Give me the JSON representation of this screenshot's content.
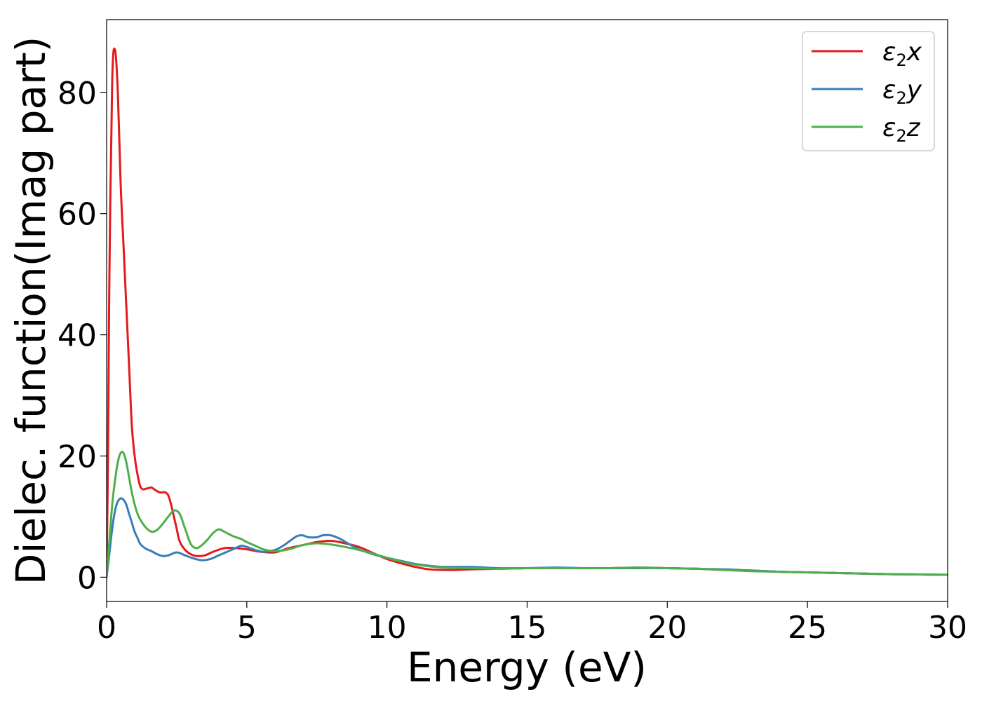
{
  "chart_data": {
    "type": "line",
    "xlabel": "Energy (eV)",
    "ylabel": "Dielec. function(Imag part)",
    "xlim": [
      0,
      30
    ],
    "ylim": [
      -4,
      92
    ],
    "xticks": [
      0,
      5,
      10,
      15,
      20,
      25,
      30
    ],
    "yticks": [
      0,
      20,
      40,
      60,
      80
    ],
    "xtick_labels": [
      "0",
      "5",
      "10",
      "15",
      "20",
      "25",
      "30"
    ],
    "ytick_labels": [
      "0",
      "20",
      "40",
      "60",
      "80"
    ],
    "grid": false,
    "legend_position": "top-right",
    "series": [
      {
        "name": "ε2x",
        "legend": {
          "base": "ε",
          "sub": "2",
          "suffix": "x"
        },
        "color": "#e41a1c",
        "x": [
          0,
          0.05,
          0.1,
          0.2,
          0.3,
          0.4,
          0.5,
          0.6,
          0.7,
          0.8,
          0.9,
          1.0,
          1.1,
          1.2,
          1.3,
          1.4,
          1.5,
          1.6,
          1.7,
          1.8,
          1.9,
          2.0,
          2.1,
          2.2,
          2.3,
          2.4,
          2.5,
          2.6,
          2.8,
          3.0,
          3.2,
          3.5,
          3.8,
          4.2,
          4.6,
          5.0,
          5.5,
          6.0,
          6.5,
          7.0,
          7.5,
          8.0,
          8.5,
          9.0,
          9.5,
          10.0,
          10.5,
          11.0,
          11.5,
          12.0,
          12.5,
          13.0,
          14.0,
          15.0,
          16.0,
          17.0,
          18.0,
          19.0,
          20.0,
          21.0,
          22.0,
          23.0,
          24.0,
          25.0,
          26.0,
          27.0,
          28.0,
          29.0,
          30.0
        ],
        "values": [
          0,
          20,
          50,
          82,
          87,
          80,
          65,
          55,
          45,
          35,
          25,
          20,
          17,
          15,
          14.5,
          14.6,
          14.7,
          14.8,
          14.5,
          14.2,
          14.0,
          14.0,
          14.0,
          13.5,
          12,
          10,
          8,
          6,
          4.5,
          3.8,
          3.5,
          3.6,
          4.2,
          4.8,
          4.8,
          4.6,
          4.2,
          4.1,
          4.8,
          5.3,
          5.8,
          6.0,
          5.6,
          5.0,
          4.0,
          3.0,
          2.3,
          1.7,
          1.3,
          1.2,
          1.2,
          1.3,
          1.4,
          1.5,
          1.5,
          1.5,
          1.5,
          1.6,
          1.5,
          1.4,
          1.2,
          1.1,
          0.9,
          0.8,
          0.7,
          0.6,
          0.5,
          0.45,
          0.4
        ]
      },
      {
        "name": "ε2y",
        "legend": {
          "base": "ε",
          "sub": "2",
          "suffix": "y"
        },
        "color": "#377eb8",
        "x": [
          0,
          0.1,
          0.2,
          0.3,
          0.4,
          0.5,
          0.6,
          0.7,
          0.8,
          0.9,
          1.0,
          1.1,
          1.2,
          1.4,
          1.6,
          1.8,
          2.0,
          2.2,
          2.5,
          2.8,
          3.1,
          3.4,
          3.7,
          4.0,
          4.3,
          4.6,
          4.8,
          5.0,
          5.3,
          5.6,
          6.0,
          6.3,
          6.6,
          6.8,
          7.0,
          7.2,
          7.5,
          7.7,
          8.0,
          8.3,
          8.6,
          9.0,
          9.5,
          10.0,
          10.5,
          11.0,
          11.5,
          12.0,
          13.0,
          14.0,
          15.0,
          16.0,
          17.0,
          18.0,
          19.0,
          20.0,
          21.0,
          22.0,
          23.0,
          24.0,
          25.0,
          26.0,
          27.0,
          28.0,
          29.0,
          30.0
        ],
        "values": [
          0,
          4,
          8,
          11,
          12.5,
          13,
          12.8,
          12,
          10.5,
          9,
          7.5,
          6.5,
          5.5,
          4.7,
          4.3,
          3.8,
          3.5,
          3.6,
          4.1,
          3.6,
          3.1,
          2.8,
          3.0,
          3.6,
          4.2,
          4.8,
          5.2,
          5.0,
          4.5,
          4.2,
          4.5,
          5.2,
          6.2,
          6.8,
          6.9,
          6.6,
          6.6,
          6.9,
          6.9,
          6.4,
          5.6,
          4.6,
          3.8,
          3.2,
          2.7,
          2.2,
          1.9,
          1.7,
          1.7,
          1.5,
          1.5,
          1.6,
          1.5,
          1.5,
          1.5,
          1.5,
          1.4,
          1.3,
          1.1,
          0.9,
          0.8,
          0.7,
          0.6,
          0.5,
          0.45,
          0.4
        ]
      },
      {
        "name": "ε2z",
        "legend": {
          "base": "ε",
          "sub": "2",
          "suffix": "z"
        },
        "color": "#4daf4a",
        "x": [
          0,
          0.1,
          0.2,
          0.3,
          0.4,
          0.5,
          0.6,
          0.7,
          0.8,
          0.9,
          1.0,
          1.1,
          1.2,
          1.4,
          1.6,
          1.8,
          2.0,
          2.2,
          2.4,
          2.6,
          2.8,
          3.0,
          3.2,
          3.4,
          3.6,
          3.8,
          4.0,
          4.2,
          4.5,
          4.8,
          5.0,
          5.3,
          5.6,
          6.0,
          6.5,
          7.0,
          7.5,
          8.0,
          8.5,
          9.0,
          9.5,
          10.0,
          10.5,
          11.0,
          12.0,
          13.0,
          14.0,
          15.0,
          16.0,
          17.0,
          18.0,
          19.0,
          20.0,
          21.0,
          22.0,
          23.0,
          24.0,
          25.0,
          26.0,
          27.0,
          28.0,
          29.0,
          30.0
        ],
        "values": [
          0,
          6,
          12,
          16,
          19,
          20.5,
          20.5,
          19,
          16.5,
          14,
          12,
          10.5,
          9.5,
          8.2,
          7.5,
          7.8,
          8.8,
          10,
          11,
          10.5,
          8,
          5.5,
          4.8,
          5.3,
          6.2,
          7.3,
          7.9,
          7.5,
          6.8,
          6.3,
          5.8,
          5.2,
          4.6,
          4.3,
          4.6,
          5.3,
          5.6,
          5.4,
          5.0,
          4.5,
          3.9,
          3.2,
          2.6,
          2.1,
          1.6,
          1.5,
          1.4,
          1.5,
          1.5,
          1.5,
          1.5,
          1.6,
          1.5,
          1.4,
          1.2,
          1.0,
          0.9,
          0.8,
          0.7,
          0.6,
          0.5,
          0.45,
          0.4
        ]
      }
    ]
  }
}
